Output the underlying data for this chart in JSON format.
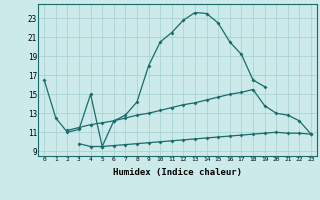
{
  "xlabel": "Humidex (Indice chaleur)",
  "background_color": "#cceaea",
  "grid_color": "#aad4d4",
  "line_color": "#1a6b6b",
  "xlim": [
    -0.5,
    23.5
  ],
  "ylim": [
    8.5,
    24.5
  ],
  "yticks": [
    9,
    11,
    13,
    15,
    17,
    19,
    21,
    23
  ],
  "xticks": [
    0,
    1,
    2,
    3,
    4,
    5,
    6,
    7,
    8,
    9,
    10,
    11,
    12,
    13,
    14,
    15,
    16,
    17,
    18,
    19,
    20,
    21,
    22,
    23
  ],
  "xtick_labels": [
    "0",
    "1",
    "2",
    "3",
    "4",
    "5",
    "6",
    "7",
    "8",
    "9",
    "10",
    "11",
    "12",
    "13",
    "14",
    "15",
    "16",
    "17",
    "18",
    "19",
    "20",
    "21",
    "22",
    "23"
  ],
  "line1_x": [
    0,
    1,
    2,
    3,
    4,
    5,
    6,
    7,
    8,
    9,
    10,
    11,
    12,
    13,
    14,
    15,
    16,
    17,
    18,
    19,
    20,
    21,
    22,
    23
  ],
  "line1_y": [
    16.5,
    12.5,
    11.0,
    11.3,
    15.0,
    9.5,
    12.2,
    12.8,
    14.2,
    18.0,
    20.5,
    21.5,
    22.8,
    23.6,
    23.5,
    22.5,
    20.5,
    19.2,
    16.5,
    15.8,
    null,
    null,
    null,
    null
  ],
  "line2_x": [
    2,
    3,
    4,
    5,
    6,
    7,
    8,
    9,
    10,
    11,
    12,
    13,
    14,
    15,
    16,
    17,
    18,
    19,
    20,
    21,
    22,
    23
  ],
  "line2_y": [
    11.2,
    11.5,
    11.8,
    12.0,
    12.2,
    12.5,
    12.8,
    13.0,
    13.3,
    13.6,
    13.9,
    14.1,
    14.4,
    14.7,
    15.0,
    15.2,
    15.5,
    13.8,
    13.0,
    12.8,
    12.2,
    10.8
  ],
  "line3_x": [
    3,
    4,
    5,
    6,
    7,
    8,
    9,
    10,
    11,
    12,
    13,
    14,
    15,
    16,
    17,
    18,
    19,
    20,
    21,
    22,
    23
  ],
  "line3_y": [
    9.8,
    9.5,
    9.5,
    9.6,
    9.7,
    9.8,
    9.9,
    10.0,
    10.1,
    10.2,
    10.3,
    10.4,
    10.5,
    10.6,
    10.7,
    10.8,
    10.9,
    11.0,
    10.9,
    10.9,
    10.8
  ]
}
